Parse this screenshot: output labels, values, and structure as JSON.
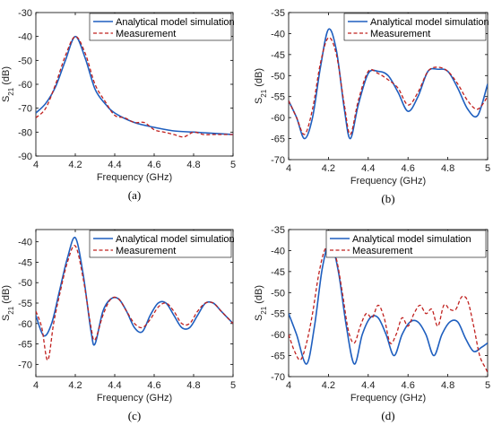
{
  "colors": {
    "analytical": "#1f5fbf",
    "measurement": "#c0201e",
    "axis": "#000000",
    "background": "#ffffff"
  },
  "chart_data": [
    {
      "type": "line",
      "panel_label": "(a)",
      "xlabel": "Frequency (GHz)",
      "ylabel": "S21 (dB)",
      "xlim": [
        4,
        5
      ],
      "ylim": [
        -90,
        -30
      ],
      "xticks": [
        "4",
        "4.2",
        "4.4",
        "4.6",
        "4.8",
        "5"
      ],
      "yticks": [
        "-30",
        "-40",
        "-50",
        "-60",
        "-70",
        "-80",
        "-90"
      ],
      "legend": "top-right",
      "series": [
        {
          "name": "Analytical model simulation",
          "style": "solid",
          "x": [
            4.0,
            4.05,
            4.1,
            4.15,
            4.2,
            4.25,
            4.3,
            4.35,
            4.4,
            4.5,
            4.6,
            4.7,
            4.8,
            4.9,
            5.0
          ],
          "y": [
            -72,
            -68,
            -61,
            -50,
            -40,
            -49,
            -62,
            -68,
            -72,
            -76,
            -78,
            -79.5,
            -80,
            -80.5,
            -81
          ]
        },
        {
          "name": "Measurement",
          "style": "dashed",
          "x": [
            4.0,
            4.05,
            4.1,
            4.15,
            4.2,
            4.25,
            4.3,
            4.35,
            4.4,
            4.45,
            4.5,
            4.55,
            4.6,
            4.65,
            4.7,
            4.75,
            4.8,
            4.85,
            4.9,
            4.95,
            5.0
          ],
          "y": [
            -74,
            -70,
            -60,
            -48,
            -40,
            -47,
            -60,
            -67,
            -73,
            -74,
            -76,
            -76,
            -79,
            -80,
            -81,
            -82,
            -80,
            -81,
            -81,
            -81,
            -81
          ]
        }
      ]
    },
    {
      "type": "line",
      "panel_label": "(b)",
      "xlabel": "Frequency (GHz)",
      "ylabel": "S21 (dB)",
      "xlim": [
        4,
        5
      ],
      "ylim": [
        -70,
        -35
      ],
      "xticks": [
        "4",
        "4.2",
        "4.4",
        "4.6",
        "4.8",
        "5"
      ],
      "yticks": [
        "-35",
        "-40",
        "-45",
        "-50",
        "-55",
        "-60",
        "-65",
        "-70"
      ],
      "legend": "top-right",
      "series": [
        {
          "name": "Analytical model simulation",
          "style": "solid",
          "x": [
            4.0,
            4.04,
            4.08,
            4.12,
            4.16,
            4.2,
            4.24,
            4.28,
            4.31,
            4.35,
            4.4,
            4.45,
            4.5,
            4.55,
            4.6,
            4.65,
            4.7,
            4.75,
            4.8,
            4.85,
            4.9,
            4.95,
            5.0
          ],
          "y": [
            -56,
            -60,
            -65,
            -60,
            -48,
            -39,
            -44,
            -58,
            -65,
            -57,
            -49.5,
            -49,
            -50,
            -54,
            -58.5,
            -55,
            -49,
            -48.5,
            -49,
            -53,
            -58,
            -59.5,
            -52
          ]
        },
        {
          "name": "Measurement",
          "style": "dashed",
          "x": [
            4.0,
            4.04,
            4.08,
            4.12,
            4.16,
            4.2,
            4.24,
            4.28,
            4.31,
            4.35,
            4.4,
            4.45,
            4.5,
            4.55,
            4.6,
            4.65,
            4.7,
            4.75,
            4.8,
            4.85,
            4.9,
            4.95,
            5.0
          ],
          "y": [
            -56,
            -60,
            -64,
            -58,
            -47,
            -41,
            -45,
            -57,
            -64,
            -56,
            -49,
            -49.5,
            -51,
            -53,
            -57,
            -54,
            -49,
            -48,
            -49,
            -52,
            -56,
            -58,
            -55
          ]
        }
      ]
    },
    {
      "type": "line",
      "panel_label": "(c)",
      "xlabel": "Frequency (GHz)",
      "ylabel": "S21 (dB)",
      "xlim": [
        4,
        5
      ],
      "ylim": [
        -73,
        -37
      ],
      "xticks": [
        "4",
        "4.2",
        "4.4",
        "4.6",
        "4.8",
        "5"
      ],
      "yticks": [
        "-40",
        "-45",
        "-50",
        "-55",
        "-60",
        "-65",
        "-70"
      ],
      "legend": "top-right",
      "series": [
        {
          "name": "Analytical model simulation",
          "style": "solid",
          "x": [
            4.0,
            4.04,
            4.08,
            4.12,
            4.16,
            4.2,
            4.24,
            4.28,
            4.3,
            4.34,
            4.38,
            4.42,
            4.46,
            4.5,
            4.54,
            4.58,
            4.62,
            4.66,
            4.7,
            4.74,
            4.78,
            4.82,
            4.86,
            4.9,
            4.94,
            4.98,
            5.0
          ],
          "y": [
            -58,
            -63,
            -60,
            -52,
            -44,
            -39,
            -48,
            -62,
            -65,
            -57,
            -54,
            -54,
            -57,
            -61,
            -62,
            -58,
            -55,
            -55,
            -58,
            -61,
            -61,
            -58,
            -55,
            -55,
            -57,
            -59,
            -60
          ]
        },
        {
          "name": "Measurement",
          "style": "dashed",
          "x": [
            4.0,
            4.03,
            4.06,
            4.09,
            4.12,
            4.16,
            4.2,
            4.24,
            4.28,
            4.3,
            4.34,
            4.38,
            4.42,
            4.46,
            4.5,
            4.54,
            4.58,
            4.62,
            4.66,
            4.7,
            4.74,
            4.78,
            4.82,
            4.86,
            4.9,
            4.94,
            4.98,
            5.0
          ],
          "y": [
            -57,
            -61,
            -69,
            -60,
            -53,
            -45,
            -41,
            -49,
            -61,
            -64,
            -58,
            -54,
            -54,
            -57,
            -60,
            -61,
            -59,
            -56,
            -55,
            -57,
            -60,
            -60,
            -57,
            -55,
            -55,
            -57,
            -59,
            -60
          ]
        }
      ]
    },
    {
      "type": "line",
      "panel_label": "(d)",
      "xlabel": "Frequency (GHz)",
      "ylabel": "S21 (dB)",
      "xlim": [
        4,
        5
      ],
      "ylim": [
        -70,
        -35
      ],
      "xticks": [
        "4",
        "4.2",
        "4.4",
        "4.6",
        "4.8",
        "5"
      ],
      "yticks": [
        "-35",
        "-40",
        "-45",
        "-50",
        "-55",
        "-60",
        "-65",
        "-70"
      ],
      "legend": "top-right",
      "series": [
        {
          "name": "Analytical model simulation",
          "style": "solid",
          "x": [
            4.0,
            4.04,
            4.09,
            4.13,
            4.17,
            4.21,
            4.25,
            4.29,
            4.33,
            4.37,
            4.41,
            4.45,
            4.49,
            4.53,
            4.57,
            4.61,
            4.65,
            4.69,
            4.73,
            4.77,
            4.81,
            4.85,
            4.89,
            4.93,
            4.97,
            5.0
          ],
          "y": [
            -55,
            -60,
            -67,
            -58,
            -44,
            -38,
            -45,
            -58,
            -67,
            -60,
            -56,
            -56,
            -60,
            -65,
            -60,
            -57,
            -57,
            -60,
            -65,
            -60,
            -57,
            -57,
            -61,
            -64,
            -63,
            -62
          ]
        },
        {
          "name": "Measurement",
          "style": "dashed",
          "x": [
            4.0,
            4.03,
            4.06,
            4.09,
            4.12,
            4.15,
            4.18,
            4.21,
            4.24,
            4.27,
            4.3,
            4.33,
            4.36,
            4.39,
            4.42,
            4.45,
            4.48,
            4.51,
            4.54,
            4.57,
            4.6,
            4.63,
            4.66,
            4.69,
            4.72,
            4.75,
            4.78,
            4.81,
            4.84,
            4.87,
            4.9,
            4.93,
            4.96,
            4.99,
            5.0
          ],
          "y": [
            -60,
            -64,
            -66,
            -62,
            -55,
            -46,
            -40,
            -39,
            -42,
            -50,
            -59,
            -62,
            -58,
            -55,
            -56,
            -53,
            -56,
            -62,
            -60,
            -56,
            -58,
            -55,
            -53,
            -55,
            -54,
            -58,
            -53,
            -54,
            -54,
            -51,
            -52,
            -58,
            -65,
            -68,
            -69
          ]
        }
      ]
    }
  ]
}
